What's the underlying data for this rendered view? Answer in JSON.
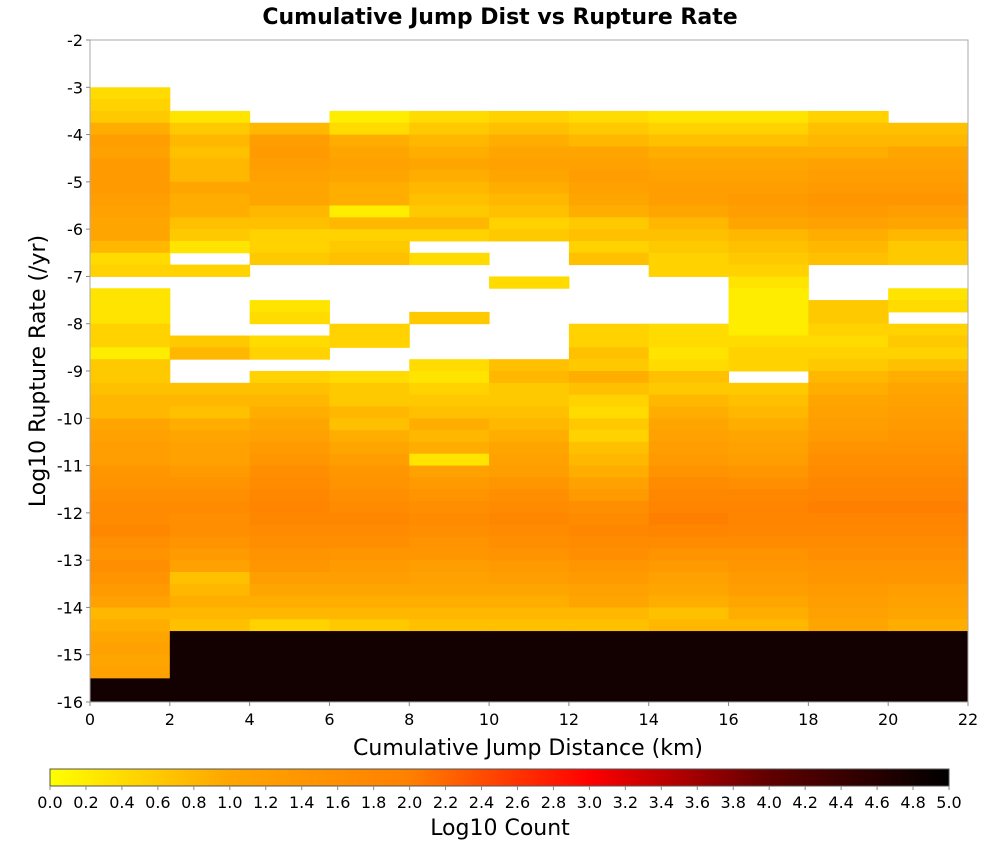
{
  "chart_data": {
    "type": "heatmap",
    "title": "Cumulative Jump Dist vs Rupture Rate",
    "xlabel": "Cumulative Jump Distance (km)",
    "ylabel": "Log10 Rupture Rate (/yr)",
    "xlim": [
      0,
      22
    ],
    "ylim": [
      -16,
      -2
    ],
    "x_ticks": [
      "0",
      "2",
      "4",
      "6",
      "8",
      "10",
      "12",
      "14",
      "16",
      "18",
      "20",
      "22"
    ],
    "y_ticks": [
      "-2",
      "-3",
      "-4",
      "-5",
      "-6",
      "-7",
      "-8",
      "-9",
      "-10",
      "-11",
      "-12",
      "-13",
      "-14",
      "-15",
      "-16"
    ],
    "x_bins": [
      0,
      2,
      4,
      6,
      8,
      10,
      12,
      14,
      16,
      18,
      20,
      22
    ],
    "y_bin_width": 0.25,
    "y_bin_top": -3.0,
    "y_bin_bottom": -16.0,
    "grid": false,
    "colorbar": {
      "label": "Log10 Count",
      "min": 0.0,
      "max": 5.0,
      "placement": "bottom",
      "colors": [
        "#ffff00",
        "#ffa500",
        "#ff8000",
        "#ff0000",
        "#600000",
        "#000000"
      ],
      "ticks": [
        "0.0",
        "0.2",
        "0.4",
        "0.6",
        "0.8",
        "1.0",
        "1.2",
        "1.4",
        "1.6",
        "1.8",
        "2.0",
        "2.2",
        "2.4",
        "2.6",
        "2.8",
        "3.0",
        "3.2",
        "3.4",
        "3.6",
        "3.8",
        "4.0",
        "4.2",
        "4.4",
        "4.6",
        "4.8",
        "5.0"
      ]
    },
    "columns": [
      [
        0.4,
        0.5,
        0.6,
        0.9,
        1.2,
        1.1,
        1.3,
        1.3,
        1.3,
        1.2,
        1.1,
        1.0,
        1.0,
        0.8,
        0.4,
        0.5,
        null,
        0.3,
        0.3,
        0.3,
        0.5,
        0.5,
        0.2,
        0.6,
        0.6,
        0.7,
        0.8,
        0.8,
        1.0,
        1.1,
        1.2,
        1.2,
        1.4,
        1.5,
        1.6,
        1.7,
        1.7,
        1.8,
        1.6,
        1.5,
        1.6,
        1.5,
        1.3,
        1.1,
        0.8,
        0.9,
        1.0,
        1.1,
        1.0,
        1.1,
        4.8
      ],
      [
        null,
        null,
        0.3,
        0.6,
        0.8,
        0.7,
        0.8,
        0.8,
        1.0,
        0.9,
        0.9,
        0.7,
        0.6,
        0.3,
        null,
        0.5,
        null,
        null,
        null,
        null,
        null,
        0.6,
        0.8,
        null,
        null,
        0.7,
        0.8,
        0.7,
        0.9,
        1.0,
        1.1,
        1.1,
        1.3,
        1.5,
        1.6,
        1.7,
        1.6,
        1.6,
        1.5,
        1.3,
        1.1,
        0.7,
        0.8,
        0.9,
        0.8,
        0.7,
        4.8
      ],
      [
        null,
        null,
        null,
        0.8,
        1.2,
        1.3,
        1.2,
        1.1,
        1.0,
        1.0,
        0.8,
        0.7,
        0.5,
        0.5,
        0.6,
        null,
        null,
        null,
        0.3,
        0.4,
        null,
        0.4,
        0.5,
        null,
        0.5,
        0.7,
        0.8,
        0.9,
        1.0,
        1.1,
        1.3,
        1.4,
        1.6,
        1.7,
        1.8,
        1.9,
        1.8,
        1.7,
        1.6,
        1.5,
        1.4,
        1.2,
        1.0,
        0.9,
        0.8,
        0.5,
        4.8
      ],
      [
        null,
        null,
        0.2,
        0.4,
        0.9,
        1.0,
        1.1,
        1.0,
        0.9,
        0.9,
        0.2,
        0.8,
        0.5,
        0.6,
        0.7,
        null,
        null,
        null,
        null,
        null,
        0.5,
        0.5,
        null,
        null,
        0.4,
        0.6,
        0.6,
        0.8,
        0.7,
        0.9,
        1.0,
        1.2,
        1.4,
        1.5,
        1.6,
        1.7,
        1.8,
        1.7,
        1.6,
        1.4,
        1.3,
        1.2,
        1.0,
        0.9,
        0.8,
        0.6,
        4.8
      ],
      [
        null,
        null,
        0.4,
        0.6,
        0.8,
        0.9,
        1.0,
        0.9,
        0.8,
        0.7,
        0.6,
        0.8,
        0.5,
        null,
        0.4,
        null,
        null,
        null,
        null,
        0.6,
        null,
        null,
        null,
        0.4,
        0.3,
        0.5,
        0.6,
        0.7,
        0.9,
        0.8,
        0.9,
        0.3,
        1.1,
        1.3,
        1.5,
        1.6,
        1.7,
        1.6,
        1.5,
        1.4,
        1.2,
        1.1,
        1.0,
        0.9,
        0.8,
        0.7,
        4.8
      ],
      [
        null,
        null,
        0.5,
        0.7,
        0.9,
        1.0,
        1.1,
        1.0,
        0.9,
        0.8,
        0.7,
        0.5,
        0.6,
        null,
        null,
        null,
        0.4,
        null,
        null,
        null,
        null,
        null,
        null,
        0.7,
        0.8,
        0.6,
        0.6,
        0.7,
        0.8,
        0.9,
        1.0,
        1.1,
        1.2,
        1.4,
        1.6,
        1.7,
        1.8,
        1.7,
        1.6,
        1.5,
        1.3,
        1.2,
        1.0,
        0.9,
        0.8,
        0.7,
        4.8
      ],
      [
        null,
        null,
        0.4,
        0.6,
        0.8,
        1.0,
        1.1,
        1.2,
        1.1,
        1.0,
        0.9,
        0.6,
        0.7,
        0.5,
        0.7,
        null,
        null,
        null,
        null,
        null,
        0.5,
        0.5,
        0.7,
        0.6,
        0.9,
        0.7,
        0.5,
        0.4,
        0.6,
        0.5,
        0.7,
        0.8,
        0.9,
        1.1,
        1.3,
        1.6,
        1.7,
        1.8,
        1.7,
        1.6,
        1.4,
        1.3,
        1.1,
        1.0,
        0.8,
        0.7,
        4.8
      ],
      [
        null,
        null,
        0.3,
        0.5,
        0.7,
        0.9,
        1.0,
        1.1,
        1.2,
        1.2,
        1.0,
        0.8,
        0.7,
        0.6,
        0.5,
        0.5,
        null,
        null,
        null,
        null,
        0.4,
        0.4,
        0.3,
        0.4,
        0.7,
        0.6,
        0.8,
        0.9,
        1.0,
        1.1,
        1.2,
        1.3,
        1.5,
        1.7,
        1.8,
        1.9,
        2.0,
        1.9,
        1.7,
        1.5,
        1.3,
        1.1,
        1.0,
        0.9,
        0.7,
        0.8,
        4.8
      ],
      [
        null,
        null,
        0.3,
        0.5,
        0.7,
        0.9,
        1.0,
        1.1,
        1.2,
        1.3,
        1.2,
        1.0,
        0.8,
        0.7,
        0.6,
        0.5,
        0.3,
        0.2,
        0.2,
        0.2,
        0.2,
        0.4,
        0.5,
        0.5,
        null,
        0.6,
        0.7,
        0.8,
        0.9,
        1.0,
        1.1,
        1.2,
        1.4,
        1.6,
        1.8,
        1.9,
        1.9,
        1.8,
        1.7,
        1.5,
        1.4,
        1.3,
        1.2,
        1.0,
        0.9,
        0.8,
        4.8
      ],
      [
        null,
        null,
        0.5,
        0.7,
        0.8,
        0.9,
        1.1,
        1.2,
        1.3,
        1.4,
        1.3,
        1.1,
        0.9,
        0.8,
        0.7,
        null,
        null,
        null,
        0.6,
        0.6,
        0.5,
        0.4,
        0.5,
        0.6,
        0.8,
        0.9,
        1.0,
        1.1,
        1.2,
        1.3,
        1.5,
        1.6,
        1.7,
        1.8,
        1.9,
        2.0,
        1.9,
        1.8,
        1.7,
        1.6,
        1.5,
        1.4,
        1.3,
        1.2,
        1.1,
        1.0,
        4.8
      ],
      [
        null,
        null,
        null,
        0.7,
        0.8,
        1.0,
        1.1,
        1.2,
        1.3,
        1.4,
        1.2,
        1.0,
        0.8,
        0.6,
        0.6,
        null,
        null,
        0.3,
        0.4,
        null,
        0.5,
        0.6,
        0.5,
        0.7,
        0.9,
        1.0,
        1.1,
        1.2,
        1.3,
        1.4,
        1.5,
        1.6,
        1.7,
        1.8,
        1.9,
        2.0,
        1.9,
        1.8,
        1.7,
        1.6,
        1.5,
        1.4,
        1.2,
        1.1,
        1.0,
        0.9,
        4.8
      ]
    ]
  }
}
